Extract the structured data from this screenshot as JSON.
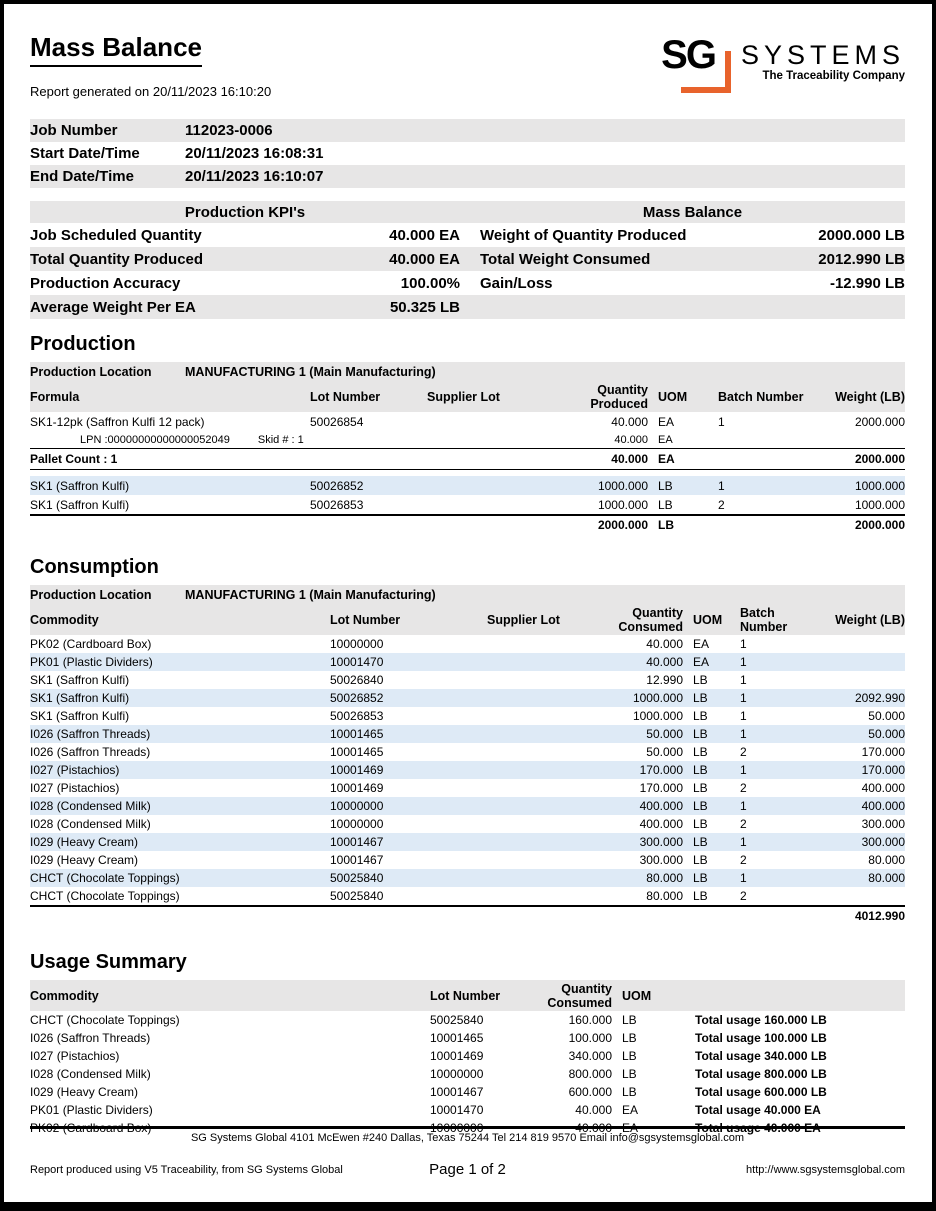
{
  "report": {
    "title": "Mass Balance",
    "generated": "Report generated on 20/11/2023 16:10:20"
  },
  "logo": {
    "sg": "SG",
    "systems": "SYSTEMS",
    "tagline": "The Traceability Company",
    "accent_color": "#e8632c"
  },
  "colors": {
    "band_gray": "#e7e6e6",
    "row_blue": "#deeaf6"
  },
  "job_info": {
    "rows": [
      {
        "label": "Job Number",
        "value": "112023-0006"
      },
      {
        "label": "Start Date/Time",
        "value": "20/11/2023 16:08:31"
      },
      {
        "label": "End Date/Time",
        "value": "20/11/2023 16:10:07"
      }
    ]
  },
  "kpi": {
    "left_title": "Production KPI's",
    "right_title": "Mass Balance",
    "rows": [
      {
        "l_label": "Job Scheduled Quantity",
        "l_value": "40.000 EA",
        "r_label": "Weight of Quantity Produced",
        "r_value": "2000.000 LB"
      },
      {
        "l_label": "Total Quantity Produced",
        "l_value": "40.000 EA",
        "r_label": "Total Weight Consumed",
        "r_value": "2012.990 LB"
      },
      {
        "l_label": "Production Accuracy",
        "l_value": "100.00%",
        "r_label": "Gain/Loss",
        "r_value": "-12.990 LB"
      },
      {
        "l_label": "Average Weight Per EA",
        "l_value": "50.325 LB",
        "r_label": "",
        "r_value": ""
      }
    ]
  },
  "production": {
    "heading": "Production",
    "location_label": "Production Location",
    "location_value": "MANUFACTURING 1 (Main Manufacturing)",
    "columns": [
      "Formula",
      "Lot Number",
      "Supplier Lot",
      "Quantity\nProduced",
      "UOM",
      "Batch Number",
      "Weight (LB)"
    ],
    "rows": [
      {
        "style": "plain",
        "name": "SK1-12pk (Saffron Kulfi 12 pack)",
        "lot": "50026854",
        "supplier": "",
        "qty": "40.000",
        "uom": "EA",
        "batch": "1",
        "weight": "2000.000"
      },
      {
        "style": "lpn",
        "lpn_label": "LPN :00000000000000052049",
        "skid_label": "Skid # : 1",
        "qty": "40.000",
        "uom": "EA"
      },
      {
        "style": "pallet",
        "name": "Pallet Count : 1",
        "qty": "40.000",
        "uom": "EA",
        "weight": "2000.000"
      },
      {
        "style": "blue",
        "name": "SK1 (Saffron Kulfi)",
        "lot": "50026852",
        "supplier": "",
        "qty": "1000.000",
        "uom": "LB",
        "batch": "1",
        "weight": "1000.000"
      },
      {
        "style": "plain",
        "name": "SK1 (Saffron Kulfi)",
        "lot": "50026853",
        "supplier": "",
        "qty": "1000.000",
        "uom": "LB",
        "batch": "2",
        "weight": "1000.000"
      },
      {
        "style": "total",
        "name": "",
        "qty": "2000.000",
        "uom": "LB",
        "weight": "2000.000"
      }
    ]
  },
  "consumption": {
    "heading": "Consumption",
    "location_label": "Production Location",
    "location_value": "MANUFACTURING 1 (Main Manufacturing)",
    "columns": [
      "Commodity",
      "Lot Number",
      "Supplier Lot",
      "Quantity\nConsumed",
      "UOM",
      "Batch\nNumber",
      "Weight (LB)"
    ],
    "rows": [
      {
        "name": "PK02 (Cardboard Box)",
        "lot": "10000000",
        "supplier": "",
        "qty": "40.000",
        "uom": "EA",
        "batch": "1",
        "weight": ""
      },
      {
        "name": "PK01 (Plastic Dividers)",
        "lot": "10001470",
        "supplier": "",
        "qty": "40.000",
        "uom": "EA",
        "batch": "1",
        "weight": ""
      },
      {
        "name": "SK1 (Saffron Kulfi)",
        "lot": "50026840",
        "supplier": "",
        "qty": "12.990",
        "uom": "LB",
        "batch": "1",
        "weight": ""
      },
      {
        "name": "SK1 (Saffron Kulfi)",
        "lot": "50026852",
        "supplier": "",
        "qty": "1000.000",
        "uom": "LB",
        "batch": "1",
        "weight": "2092.990"
      },
      {
        "name": "SK1 (Saffron Kulfi)",
        "lot": "50026853",
        "supplier": "",
        "qty": "1000.000",
        "uom": "LB",
        "batch": "1",
        "weight": "50.000"
      },
      {
        "name": "I026 (Saffron Threads)",
        "lot": "10001465",
        "supplier": "",
        "qty": "50.000",
        "uom": "LB",
        "batch": "1",
        "weight": "50.000"
      },
      {
        "name": "I026 (Saffron Threads)",
        "lot": "10001465",
        "supplier": "",
        "qty": "50.000",
        "uom": "LB",
        "batch": "2",
        "weight": "170.000"
      },
      {
        "name": "I027 (Pistachios)",
        "lot": "10001469",
        "supplier": "",
        "qty": "170.000",
        "uom": "LB",
        "batch": "1",
        "weight": "170.000"
      },
      {
        "name": "I027 (Pistachios)",
        "lot": "10001469",
        "supplier": "",
        "qty": "170.000",
        "uom": "LB",
        "batch": "2",
        "weight": "400.000"
      },
      {
        "name": "I028 (Condensed Milk)",
        "lot": "10000000",
        "supplier": "",
        "qty": "400.000",
        "uom": "LB",
        "batch": "1",
        "weight": "400.000"
      },
      {
        "name": "I028 (Condensed Milk)",
        "lot": "10000000",
        "supplier": "",
        "qty": "400.000",
        "uom": "LB",
        "batch": "2",
        "weight": "300.000"
      },
      {
        "name": "I029 (Heavy Cream)",
        "lot": "10001467",
        "supplier": "",
        "qty": "300.000",
        "uom": "LB",
        "batch": "1",
        "weight": "300.000"
      },
      {
        "name": "I029 (Heavy Cream)",
        "lot": "10001467",
        "supplier": "",
        "qty": "300.000",
        "uom": "LB",
        "batch": "2",
        "weight": "80.000"
      },
      {
        "name": "CHCT (Chocolate Toppings)",
        "lot": "50025840",
        "supplier": "",
        "qty": "80.000",
        "uom": "LB",
        "batch": "1",
        "weight": "80.000"
      },
      {
        "name": "CHCT (Chocolate Toppings)",
        "lot": "50025840",
        "supplier": "",
        "qty": "80.000",
        "uom": "LB",
        "batch": "2",
        "weight": ""
      }
    ],
    "total_weight": "4012.990"
  },
  "usage_summary": {
    "heading": "Usage Summary",
    "columns": [
      "Commodity",
      "Lot Number",
      "Quantity\nConsumed",
      "UOM",
      ""
    ],
    "rows": [
      {
        "name": "CHCT (Chocolate Toppings)",
        "lot": "50025840",
        "qty": "160.000",
        "uom": "LB",
        "total": "Total usage 160.000 LB"
      },
      {
        "name": "I026 (Saffron Threads)",
        "lot": "10001465",
        "qty": "100.000",
        "uom": "LB",
        "total": "Total usage 100.000 LB"
      },
      {
        "name": "I027 (Pistachios)",
        "lot": "10001469",
        "qty": "340.000",
        "uom": "LB",
        "total": "Total usage 340.000 LB"
      },
      {
        "name": "I028 (Condensed Milk)",
        "lot": "10000000",
        "qty": "800.000",
        "uom": "LB",
        "total": "Total usage 800.000 LB"
      },
      {
        "name": "I029 (Heavy Cream)",
        "lot": "10001467",
        "qty": "600.000",
        "uom": "LB",
        "total": "Total usage 600.000 LB"
      },
      {
        "name": "PK01 (Plastic Dividers)",
        "lot": "10001470",
        "qty": "40.000",
        "uom": "EA",
        "total": "Total usage 40.000 EA"
      },
      {
        "name": "PK02 (Cardboard Box)",
        "lot": "10000000",
        "qty": "40.000",
        "uom": "EA",
        "total": "Total usage 40.000 EA"
      }
    ]
  },
  "footer": {
    "address": "SG Systems Global 4101 McEwen #240 Dallas, Texas 75244 Tel 214 819 9570 Email info@sgsystemsglobal.com",
    "left": "Report produced using V5 Traceability, from SG Systems Global",
    "page": "Page 1 of 2",
    "right": "http://www.sgsystemsglobal.com"
  }
}
